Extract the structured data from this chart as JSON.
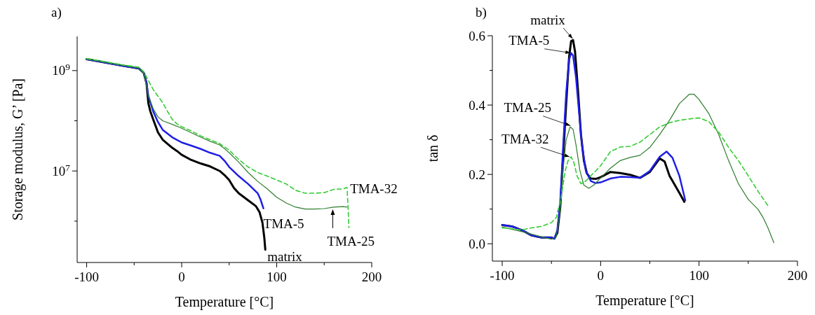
{
  "chart_data": [
    {
      "type": "line",
      "title": "a)",
      "xlabel": "Temperature [°C]",
      "ylabel": "Storage modulus, G’ [Pa]",
      "log": "y",
      "xlim": [
        -110,
        200
      ],
      "xticks": [
        -100,
        {
          "value": -50,
          "label": null
        },
        0,
        {
          "value": 50,
          "label": null
        },
        100,
        {
          "value": 150,
          "label": null
        },
        200
      ],
      "ylim": [
        150000,
        4800000000
      ],
      "yticks": [
        {
          "value": 1000000000,
          "label": "10$^{9}$"
        },
        {
          "value": 100000000,
          "label": null
        },
        {
          "value": 10000000,
          "label": "10$^{7}$"
        },
        {
          "value": 1000000,
          "label": null
        }
      ],
      "series": [
        {
          "color": "#000000",
          "x": [
            -100,
            -60,
            -45,
            -40,
            -37,
            -35,
            -33,
            -30,
            -25,
            -20,
            -10,
            -5,
            0,
            10,
            20,
            30,
            40,
            45,
            50,
            55,
            60,
            70,
            78,
            82,
            85,
            87,
            88
          ],
          "values": [
            1690000000.0,
            1230000000.0,
            1100000000.0,
            910000000.0,
            560000000.0,
            220000000.0,
            155000000.0,
            107000000.0,
            59000000.0,
            42000000.0,
            29000000.0,
            25000000.0,
            21000000.0,
            16600000.0,
            14100000.0,
            12300000.0,
            10000000.0,
            8300000.0,
            6600000.0,
            4600000.0,
            3600000.0,
            2600000.0,
            2000000.0,
            1500000.0,
            930000.0,
            460000.0,
            270000.0
          ]
        },
        {
          "color": "#1f1fe6",
          "x": [
            -100,
            -60,
            -45,
            -40,
            -37,
            -35,
            -30,
            -25,
            -20,
            -10,
            0,
            10,
            20,
            30,
            40,
            45,
            50,
            60,
            70,
            80,
            83,
            86
          ],
          "values": [
            1690000000.0,
            1230000000.0,
            1100000000.0,
            910000000.0,
            560000000.0,
            310000000.0,
            155000000.0,
            95000000.0,
            66000000.0,
            47000000.0,
            37000000.0,
            32000000.0,
            27500000.0,
            23000000.0,
            20000000.0,
            16000000.0,
            12000000.0,
            7900000.0,
            5500000.0,
            3600000.0,
            2700000.0,
            1800000.0
          ]
        },
        {
          "color": "#2e7d2e",
          "x": [
            -100,
            -60,
            -45,
            -40,
            -37,
            -35,
            -30,
            -25,
            -20,
            -10,
            0,
            10,
            20,
            30,
            40,
            45,
            50,
            60,
            70,
            80,
            90,
            100,
            110,
            120,
            130,
            140,
            150,
            160,
            170,
            174
          ],
          "values": [
            1700000000.0,
            1250000000.0,
            1120000000.0,
            890000000.0,
            500000000.0,
            310000000.0,
            174000000.0,
            120000000.0,
            100000000.0,
            85000000.0,
            71000000.0,
            58000000.0,
            47000000.0,
            39000000.0,
            33000000.0,
            28000000.0,
            23000000.0,
            15000000.0,
            9300000.0,
            6200000.0,
            4400000.0,
            3000000.0,
            2300000.0,
            1900000.0,
            1740000.0,
            1740000.0,
            1780000.0,
            1900000.0,
            1950000.0,
            1900000.0
          ]
        },
        {
          "color": "#33cc33",
          "line_style": "dashed",
          "x": [
            -100,
            -60,
            -45,
            -40,
            -35,
            -30,
            -25,
            -20,
            -15,
            -10,
            -5,
            0,
            10,
            20,
            30,
            40,
            50,
            60,
            70,
            80,
            90,
            100,
            110,
            120,
            130,
            140,
            150,
            160,
            170,
            174,
            175,
            176
          ],
          "values": [
            1740000000.0,
            1280000000.0,
            1170000000.0,
            950000000.0,
            630000000.0,
            420000000.0,
            310000000.0,
            230000000.0,
            155000000.0,
            107000000.0,
            87000000.0,
            76000000.0,
            63000000.0,
            50000000.0,
            42000000.0,
            35000000.0,
            26000000.0,
            17000000.0,
            12000000.0,
            9300000.0,
            7900000.0,
            6600000.0,
            5500000.0,
            4100000.0,
            3600000.0,
            3600000.0,
            3700000.0,
            4300000.0,
            4400000.0,
            4700000.0,
            2100000.0,
            740000.0
          ]
        }
      ],
      "annotations": [
        {
          "text": "TMA-32",
          "x": 175,
          "y": 4700000.0
        },
        {
          "text": "TMA-5",
          "x": 86,
          "y": 1800000.0
        },
        {
          "text": "matrix",
          "x": 88,
          "y": 270000.0
        },
        {
          "text": "TMA-25",
          "x": 159,
          "y": 1900000.0
        }
      ]
    },
    {
      "type": "line",
      "title": "b)",
      "xlabel": "Temperature [°C]",
      "ylabel": "tan δ",
      "xlim": [
        -110,
        200
      ],
      "xticks": [
        -100,
        {
          "value": -50,
          "label": null
        },
        0,
        {
          "value": 50,
          "label": null
        },
        100,
        {
          "value": 150,
          "label": null
        },
        200
      ],
      "ylim": [
        -0.05,
        0.6
      ],
      "yticks": [
        {
          "value": 0,
          "label": "0.0"
        },
        {
          "value": 0.1,
          "label": null
        },
        0.2,
        {
          "value": 0.3,
          "label": null
        },
        0.4,
        {
          "value": 0.5,
          "label": null
        },
        0.6
      ],
      "series": [
        {
          "color": "#000000",
          "x": [
            -100,
            -90,
            -80,
            -70,
            -60,
            -50,
            -47,
            -44,
            -41,
            -38,
            -35,
            -32,
            -30,
            -28,
            -26,
            -23,
            -20,
            -17,
            -14,
            -10,
            -5,
            0,
            10,
            20,
            30,
            40,
            50,
            60,
            65,
            70,
            80,
            85
          ],
          "values": [
            0.054,
            0.05,
            0.039,
            0.024,
            0.018,
            0.018,
            0.015,
            0.031,
            0.106,
            0.255,
            0.404,
            0.539,
            0.584,
            0.587,
            0.554,
            0.442,
            0.315,
            0.24,
            0.203,
            0.188,
            0.187,
            0.192,
            0.207,
            0.204,
            0.199,
            0.19,
            0.207,
            0.246,
            0.237,
            0.196,
            0.147,
            0.121
          ]
        },
        {
          "color": "#1f1fe6",
          "x": [
            -100,
            -90,
            -80,
            -70,
            -60,
            -50,
            -47,
            -44,
            -41,
            -38,
            -35,
            -32,
            -30,
            -28,
            -25,
            -22,
            -19,
            -15,
            -10,
            -5,
            0,
            10,
            20,
            30,
            40,
            50,
            60,
            67,
            73,
            80,
            86
          ],
          "values": [
            0.054,
            0.05,
            0.039,
            0.024,
            0.018,
            0.018,
            0.015,
            0.039,
            0.121,
            0.285,
            0.434,
            0.531,
            0.55,
            0.543,
            0.479,
            0.382,
            0.285,
            0.21,
            0.181,
            0.175,
            0.177,
            0.188,
            0.193,
            0.192,
            0.19,
            0.21,
            0.251,
            0.266,
            0.248,
            0.196,
            0.125
          ]
        },
        {
          "color": "#2e7d2e",
          "x": [
            -100,
            -80,
            -60,
            -50,
            -45,
            -41,
            -38,
            -35,
            -31,
            -28,
            -25,
            -21,
            -17,
            -12,
            -7,
            0,
            10,
            20,
            30,
            40,
            50,
            60,
            70,
            80,
            90,
            95,
            100,
            110,
            120,
            130,
            140,
            150,
            160,
            165,
            170,
            176
          ],
          "values": [
            0.048,
            0.035,
            0.02,
            0.013,
            0.02,
            0.099,
            0.218,
            0.3,
            0.337,
            0.33,
            0.285,
            0.21,
            0.169,
            0.16,
            0.169,
            0.19,
            0.218,
            0.24,
            0.249,
            0.255,
            0.278,
            0.315,
            0.356,
            0.404,
            0.431,
            0.431,
            0.416,
            0.375,
            0.315,
            0.24,
            0.173,
            0.128,
            0.099,
            0.076,
            0.046,
            0.003
          ]
        },
        {
          "color": "#33cc33",
          "line_style": "dashed",
          "x": [
            -100,
            -80,
            -70,
            -60,
            -50,
            -45,
            -40,
            -36,
            -33,
            -30,
            -27,
            -24,
            -20,
            -15,
            -10,
            -5,
            0,
            10,
            20,
            30,
            40,
            50,
            60,
            70,
            80,
            90,
            100,
            110,
            120,
            130,
            140,
            150,
            160,
            170
          ],
          "values": [
            0.046,
            0.04,
            0.046,
            0.05,
            0.061,
            0.076,
            0.136,
            0.21,
            0.24,
            0.251,
            0.233,
            0.196,
            0.173,
            0.181,
            0.196,
            0.21,
            0.225,
            0.266,
            0.279,
            0.281,
            0.293,
            0.315,
            0.337,
            0.349,
            0.356,
            0.36,
            0.363,
            0.352,
            0.322,
            0.278,
            0.24,
            0.196,
            0.151,
            0.11
          ]
        }
      ],
      "annotations": [
        {
          "text": "matrix",
          "x": -28,
          "y": 0.59
        },
        {
          "text": "TMA-5",
          "x": -30,
          "y": 0.55
        },
        {
          "text": "TMA-25",
          "x": -30,
          "y": 0.34
        },
        {
          "text": "TMA-32",
          "x": -31,
          "y": 0.25
        }
      ]
    }
  ]
}
